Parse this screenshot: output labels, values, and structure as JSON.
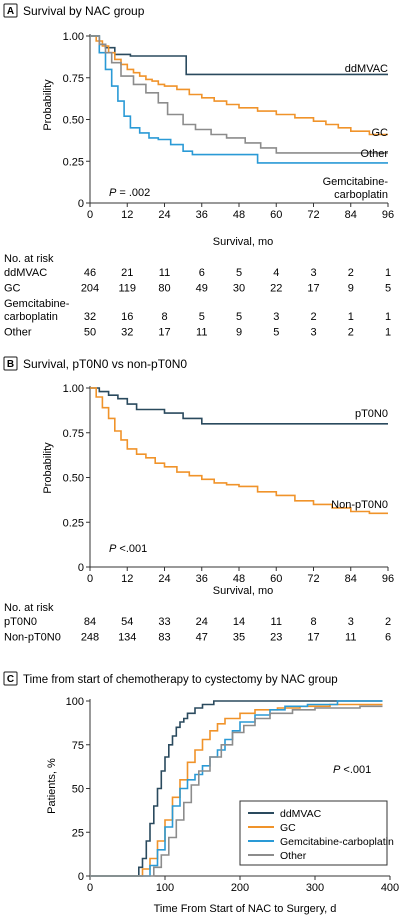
{
  "colors": {
    "ddmvac": "#2a4a5e",
    "gc": "#f0932a",
    "gemcarbo": "#2a9ad6",
    "other": "#8c8c8c",
    "ptono": "#2a4a5e",
    "nonptono": "#f0932a",
    "badge": "#1a1a1a",
    "axis": "#333333"
  },
  "chart_data": [
    {
      "panel": "A",
      "type": "line",
      "step": true,
      "title": "Survival by NAC group",
      "xlabel": "Survival, mo",
      "ylabel": "Probability",
      "xlim": [
        0,
        96
      ],
      "ylim": [
        0,
        1
      ],
      "xticks": [
        "0",
        "12",
        "24",
        "36",
        "48",
        "60",
        "72",
        "84",
        "96"
      ],
      "yticks": [
        "0",
        "0.25",
        "0.50",
        "0.75",
        "1.00"
      ],
      "annotation": {
        "italic": "P",
        "rest": " = .002"
      },
      "series": [
        {
          "name": "ddMVAC",
          "color_key": "ddmvac",
          "x": [
            0,
            3,
            5,
            8,
            13,
            19,
            25,
            31,
            96
          ],
          "y": [
            1.0,
            0.95,
            0.93,
            0.89,
            0.88,
            0.88,
            0.88,
            0.77,
            0.77
          ]
        },
        {
          "name": "GC",
          "color_key": "gc",
          "x": [
            0,
            2,
            4,
            6,
            8,
            10,
            12,
            14,
            16,
            18,
            20,
            22,
            24,
            28,
            32,
            36,
            40,
            44,
            48,
            54,
            60,
            66,
            72,
            76,
            80,
            84,
            90,
            96
          ],
          "y": [
            1.0,
            0.97,
            0.94,
            0.9,
            0.86,
            0.83,
            0.8,
            0.78,
            0.76,
            0.74,
            0.73,
            0.71,
            0.7,
            0.68,
            0.65,
            0.63,
            0.61,
            0.59,
            0.57,
            0.55,
            0.53,
            0.51,
            0.49,
            0.47,
            0.45,
            0.43,
            0.41,
            0.41
          ]
        },
        {
          "name": "Gemcitabine-carboplatin",
          "color_key": "gemcarbo",
          "x": [
            0,
            3,
            5,
            7,
            9,
            11,
            13,
            16,
            19,
            22,
            26,
            30,
            33,
            38,
            47,
            54,
            60,
            96
          ],
          "y": [
            1.0,
            0.9,
            0.8,
            0.7,
            0.61,
            0.52,
            0.45,
            0.42,
            0.39,
            0.38,
            0.35,
            0.31,
            0.29,
            0.29,
            0.29,
            0.24,
            0.24,
            0.24
          ]
        },
        {
          "name": "Other",
          "color_key": "other",
          "x": [
            0,
            3,
            5,
            7,
            10,
            14,
            18,
            22,
            25,
            30,
            34,
            39,
            44,
            50,
            55,
            60,
            96
          ],
          "y": [
            1.0,
            0.95,
            0.9,
            0.84,
            0.76,
            0.71,
            0.66,
            0.6,
            0.53,
            0.47,
            0.44,
            0.41,
            0.39,
            0.36,
            0.33,
            0.3,
            0.3
          ]
        }
      ],
      "risk_table": {
        "heading": "No. at risk",
        "rows": [
          {
            "label": "ddMVAC",
            "values": [
              "46",
              "21",
              "11",
              "6",
              "5",
              "4",
              "3",
              "2",
              "1"
            ]
          },
          {
            "label": "GC",
            "values": [
              "204",
              "119",
              "80",
              "49",
              "30",
              "22",
              "17",
              "9",
              "5"
            ]
          },
          {
            "label": "Gemcitabine-carboplatin",
            "values": [
              "32",
              "16",
              "8",
              "5",
              "5",
              "3",
              "2",
              "1",
              "1"
            ]
          },
          {
            "label": "Other",
            "values": [
              "50",
              "32",
              "17",
              "11",
              "9",
              "5",
              "3",
              "2",
              "1"
            ]
          }
        ]
      }
    },
    {
      "panel": "B",
      "type": "line",
      "step": true,
      "title": "Survival, pT0N0 vs non-pT0N0",
      "xlabel": "Survival, mo",
      "ylabel": "Probability",
      "xlim": [
        0,
        96
      ],
      "ylim": [
        0,
        1
      ],
      "xticks": [
        "0",
        "12",
        "24",
        "36",
        "48",
        "60",
        "72",
        "84",
        "96"
      ],
      "yticks": [
        "0",
        "0.25",
        "0.50",
        "0.75",
        "1.00"
      ],
      "annotation": {
        "italic": "P",
        "rest": " <.001"
      },
      "series": [
        {
          "name": "pT0N0",
          "color_key": "ptono",
          "x": [
            0,
            3,
            6,
            9,
            12,
            15,
            18,
            24,
            30,
            36,
            48,
            60,
            72,
            84,
            96
          ],
          "y": [
            1.0,
            0.98,
            0.96,
            0.94,
            0.91,
            0.88,
            0.88,
            0.86,
            0.83,
            0.8,
            0.8,
            0.8,
            0.8,
            0.8,
            0.8
          ]
        },
        {
          "name": "Non-pT0N0",
          "color_key": "nonptono",
          "x": [
            0,
            2,
            4,
            6,
            8,
            10,
            12,
            15,
            18,
            21,
            24,
            28,
            32,
            36,
            40,
            44,
            48,
            54,
            60,
            66,
            72,
            78,
            84,
            90,
            96
          ],
          "y": [
            1.0,
            0.95,
            0.89,
            0.83,
            0.76,
            0.71,
            0.66,
            0.63,
            0.61,
            0.58,
            0.56,
            0.53,
            0.51,
            0.49,
            0.47,
            0.46,
            0.45,
            0.42,
            0.4,
            0.37,
            0.35,
            0.33,
            0.31,
            0.3,
            0.3
          ]
        }
      ],
      "risk_table": {
        "heading": "No. at risk",
        "rows": [
          {
            "label": "pT0N0",
            "values": [
              "84",
              "54",
              "33",
              "24",
              "14",
              "11",
              "8",
              "3",
              "2"
            ]
          },
          {
            "label": "Non-pT0N0",
            "values": [
              "248",
              "134",
              "83",
              "47",
              "35",
              "23",
              "17",
              "11",
              "6"
            ]
          }
        ]
      }
    },
    {
      "panel": "C",
      "type": "line",
      "step": true,
      "title": "Time from start of chemotherapy to cystectomy by NAC group",
      "xlabel": "Time From Start of NAC to Surgery, d",
      "ylabel": "Patients, %",
      "xlim": [
        0,
        400
      ],
      "ylim": [
        0,
        100
      ],
      "xticks": [
        "0",
        "100",
        "200",
        "300",
        "400"
      ],
      "yticks": [
        "0",
        "25",
        "50",
        "75",
        "100"
      ],
      "annotation": {
        "italic": "P",
        "rest": " <.001"
      },
      "legend": "lower-right",
      "series": [
        {
          "name": "ddMVAC",
          "color_key": "ddmvac",
          "x": [
            0,
            55,
            65,
            70,
            75,
            80,
            85,
            90,
            95,
            100,
            105,
            110,
            115,
            120,
            125,
            130,
            140,
            150,
            165,
            390
          ],
          "y": [
            0,
            0,
            5,
            10,
            20,
            30,
            40,
            50,
            60,
            68,
            75,
            80,
            85,
            88,
            90,
            93,
            96,
            98,
            100,
            100
          ]
        },
        {
          "name": "GC",
          "color_key": "gc",
          "x": [
            0,
            60,
            70,
            80,
            90,
            100,
            110,
            120,
            130,
            140,
            150,
            160,
            170,
            180,
            200,
            220,
            250,
            280,
            320,
            390
          ],
          "y": [
            0,
            0,
            4,
            10,
            20,
            32,
            45,
            55,
            65,
            72,
            78,
            83,
            87,
            90,
            93,
            95,
            96,
            97,
            98,
            98
          ]
        },
        {
          "name": "Gemcitabine-carboplatin",
          "color_key": "gemcarbo",
          "x": [
            0,
            70,
            80,
            90,
            100,
            110,
            120,
            130,
            140,
            150,
            160,
            170,
            180,
            190,
            200,
            220,
            240,
            260,
            290,
            330,
            390
          ],
          "y": [
            0,
            0,
            6,
            15,
            28,
            40,
            50,
            55,
            58,
            63,
            68,
            72,
            78,
            83,
            88,
            92,
            95,
            97,
            98,
            100,
            100
          ]
        },
        {
          "name": "Other",
          "color_key": "other",
          "x": [
            0,
            75,
            85,
            95,
            105,
            115,
            125,
            135,
            145,
            160,
            175,
            190,
            205,
            220,
            240,
            270,
            300,
            360,
            390
          ],
          "y": [
            0,
            0,
            5,
            12,
            22,
            32,
            42,
            52,
            60,
            68,
            75,
            82,
            86,
            90,
            93,
            95,
            96,
            97,
            97
          ]
        }
      ]
    }
  ]
}
